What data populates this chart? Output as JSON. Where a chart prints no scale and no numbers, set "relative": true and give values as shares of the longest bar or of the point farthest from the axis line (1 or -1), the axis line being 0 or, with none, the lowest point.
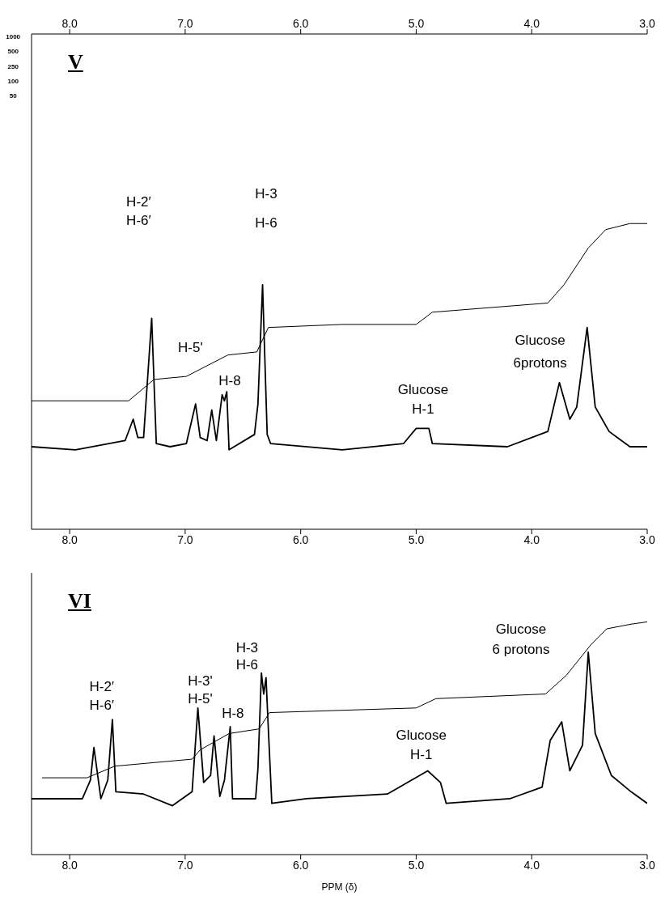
{
  "chart_data": [
    {
      "type": "line",
      "title": "V",
      "relative": true,
      "grid": false,
      "legend": false,
      "marker": "none",
      "xlim": [
        8.33,
        3.0
      ],
      "xticks": [
        {
          "value": 8,
          "label": "8.0"
        },
        {
          "value": 7,
          "label": "7.0"
        },
        {
          "value": 6,
          "label": "6.0"
        },
        {
          "value": 5,
          "label": "5.0"
        },
        {
          "value": 4,
          "label": "4.0"
        },
        {
          "value": 3,
          "label": "3.0"
        }
      ],
      "x2lim": [
        8.33,
        3.0
      ],
      "x2ticks": [
        {
          "value": 8,
          "label": "8.0"
        },
        {
          "value": 7,
          "label": "7.0"
        },
        {
          "value": 6,
          "label": "6.0"
        },
        {
          "value": 5,
          "label": "5.0"
        },
        {
          "value": 4,
          "label": "4.0"
        },
        {
          "value": 3,
          "label": "3.0"
        }
      ],
      "series": [
        {
          "color": "#000000",
          "x": [
            8.33,
            7.95,
            7.52,
            7.45,
            7.41,
            7.36,
            7.29,
            7.25,
            7.13,
            6.99,
            6.91,
            6.87,
            6.81,
            6.77,
            6.73,
            6.68,
            6.66,
            6.64,
            6.62,
            6.4,
            6.37,
            6.33,
            6.29,
            6.26,
            5.64,
            5.11,
            5.0,
            4.89,
            4.86,
            4.21,
            3.86,
            3.76,
            3.67,
            3.61,
            3.52,
            3.45,
            3.33,
            3.15,
            3.0
          ],
          "values": [
            0.27,
            0.26,
            0.29,
            0.36,
            0.3,
            0.3,
            0.69,
            0.28,
            0.27,
            0.28,
            0.41,
            0.3,
            0.29,
            0.39,
            0.29,
            0.44,
            0.42,
            0.45,
            0.26,
            0.31,
            0.41,
            0.8,
            0.31,
            0.28,
            0.26,
            0.28,
            0.33,
            0.33,
            0.28,
            0.27,
            0.32,
            0.48,
            0.36,
            0.4,
            0.66,
            0.4,
            0.32,
            0.27,
            0.27
          ]
        },
        {
          "color": "#000000",
          "x": [
            8.33,
            7.49,
            7.27,
            6.99,
            6.63,
            6.38,
            6.28,
            5.64,
            5.0,
            4.86,
            3.86,
            3.72,
            3.51,
            3.36,
            3.15,
            3.0
          ],
          "values": [
            0.42,
            0.42,
            0.49,
            0.5,
            0.57,
            0.58,
            0.66,
            0.67,
            0.67,
            0.71,
            0.74,
            0.8,
            0.92,
            0.98,
            1.0,
            1.0
          ]
        }
      ],
      "annotations": [
        "1000",
        "500",
        "250",
        "100",
        "50",
        "H-2′",
        "H-6′",
        "H-3",
        "H-6",
        "H-5'",
        "H-8",
        "Glucose",
        "H-1",
        "Glucose",
        "6protons"
      ]
    },
    {
      "type": "line",
      "title": "VI",
      "xlabel": "PPM (δ)",
      "relative": true,
      "grid": false,
      "legend": false,
      "marker": "none",
      "xlim": [
        8.33,
        3.0
      ],
      "xticks": [
        {
          "value": 8,
          "label": "8.0"
        },
        {
          "value": 7,
          "label": "7.0"
        },
        {
          "value": 6,
          "label": "6.0"
        },
        {
          "value": 5,
          "label": "5.0"
        },
        {
          "value": 4,
          "label": "4.0"
        },
        {
          "value": 3,
          "label": "3.0"
        }
      ],
      "series": [
        {
          "color": "#000000",
          "x": [
            8.33,
            7.89,
            7.82,
            7.79,
            7.73,
            7.67,
            7.63,
            7.6,
            7.36,
            7.11,
            6.94,
            6.89,
            6.84,
            6.78,
            6.75,
            6.7,
            6.66,
            6.61,
            6.59,
            6.39,
            6.37,
            6.34,
            6.32,
            6.3,
            6.28,
            6.25,
            5.95,
            5.25,
            5.04,
            4.9,
            4.79,
            4.74,
            4.19,
            3.91,
            3.84,
            3.74,
            3.67,
            3.56,
            3.51,
            3.45,
            3.31,
            3.14,
            3.0
          ],
          "values": [
            0.24,
            0.24,
            0.32,
            0.46,
            0.24,
            0.32,
            0.58,
            0.27,
            0.26,
            0.21,
            0.27,
            0.63,
            0.31,
            0.34,
            0.51,
            0.25,
            0.32,
            0.55,
            0.24,
            0.24,
            0.37,
            0.78,
            0.69,
            0.76,
            0.54,
            0.22,
            0.24,
            0.26,
            0.32,
            0.36,
            0.31,
            0.22,
            0.24,
            0.29,
            0.49,
            0.57,
            0.36,
            0.47,
            0.87,
            0.52,
            0.34,
            0.27,
            0.22
          ]
        },
        {
          "color": "#000000",
          "x": [
            8.24,
            7.85,
            7.61,
            6.94,
            6.87,
            6.62,
            6.36,
            6.27,
            5.0,
            4.83,
            3.88,
            3.7,
            3.49,
            3.35,
            3.14,
            3.0
          ],
          "values": [
            0.33,
            0.33,
            0.38,
            0.41,
            0.45,
            0.52,
            0.54,
            0.61,
            0.63,
            0.67,
            0.69,
            0.77,
            0.9,
            0.97,
            0.99,
            1.0
          ]
        }
      ],
      "annotations": [
        "H-2′",
        "H-6′",
        "H-3'",
        "H-5'",
        "H-8",
        "H-3",
        "H-6",
        "Glucose",
        "H-1",
        "Glucose",
        "6 protons"
      ]
    }
  ]
}
